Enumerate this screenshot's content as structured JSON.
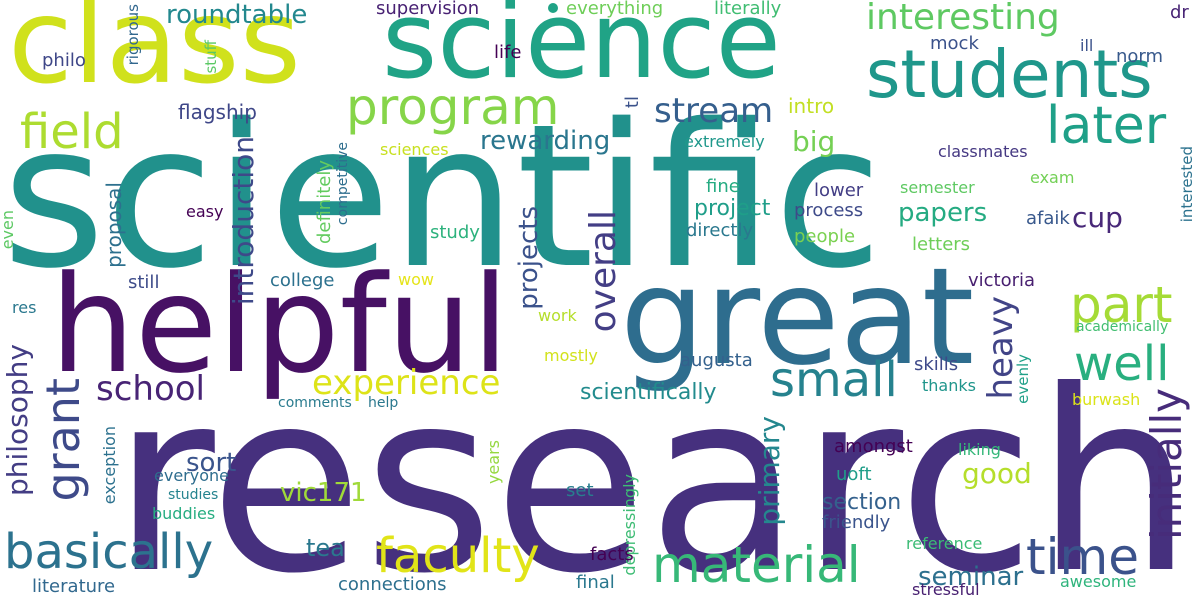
{
  "words": [
    {
      "text": "research",
      "color": "#46307e"
    },
    {
      "text": "scientific",
      "color": "#21918c"
    },
    {
      "text": "helpful",
      "color": "#471164"
    },
    {
      "text": "great",
      "color": "#2e6d8e"
    },
    {
      "text": "class",
      "color": "#d0e11c"
    },
    {
      "text": "science",
      "color": "#20a386"
    },
    {
      "text": "students",
      "color": "#1f978b"
    },
    {
      "text": "program",
      "color": "#86d549"
    },
    {
      "text": "field",
      "color": "#addc30"
    },
    {
      "text": "later",
      "color": "#1fa088"
    },
    {
      "text": "part",
      "color": "#a5db36"
    },
    {
      "text": "well",
      "color": "#29af7f"
    },
    {
      "text": "small",
      "color": "#26828e"
    },
    {
      "text": "time",
      "color": "#3b528b"
    },
    {
      "text": "material",
      "color": "#37b878"
    },
    {
      "text": "faculty",
      "color": "#e1e418"
    },
    {
      "text": "basically",
      "color": "#2c728e"
    },
    {
      "text": "grant",
      "color": "#3e4a89"
    },
    {
      "text": "initially",
      "color": "#472c7a"
    },
    {
      "text": "interesting",
      "color": "#5ec962"
    },
    {
      "text": "experience",
      "color": "#dde318"
    },
    {
      "text": "school",
      "color": "#482475"
    },
    {
      "text": "stream",
      "color": "#355f8d"
    },
    {
      "text": "overall",
      "color": "#433e85"
    },
    {
      "text": "heavy",
      "color": "#414487"
    },
    {
      "text": "roundtable",
      "color": "#23888e"
    },
    {
      "text": "papers",
      "color": "#25ab82"
    },
    {
      "text": "projects",
      "color": "#3b528b"
    },
    {
      "text": "introduction",
      "color": "#3e4989"
    },
    {
      "text": "rewarding",
      "color": "#2a768e"
    },
    {
      "text": "good",
      "color": "#b5de2b"
    },
    {
      "text": "seminar",
      "color": "#2d708e"
    },
    {
      "text": "philosophy",
      "color": "#433d84"
    },
    {
      "text": "cup",
      "color": "#482878"
    },
    {
      "text": "big",
      "color": "#75d054"
    },
    {
      "text": "project",
      "color": "#1f9e89"
    },
    {
      "text": "primary",
      "color": "#24878e"
    },
    {
      "text": "vic171",
      "color": "#a0da39"
    },
    {
      "text": "sort",
      "color": "#3a548c"
    },
    {
      "text": "tea",
      "color": "#2a788e"
    },
    {
      "text": "section",
      "color": "#34618d"
    },
    {
      "text": "scientifically",
      "color": "#228b8d"
    },
    {
      "text": "flagship",
      "color": "#3f4788"
    },
    {
      "text": "proposal",
      "color": "#2d708e"
    },
    {
      "text": "supervision",
      "color": "#482173"
    },
    {
      "text": "mock",
      "color": "#3b528b"
    },
    {
      "text": "intro",
      "color": "#c2df23"
    },
    {
      "text": "life",
      "color": "#440154"
    },
    {
      "text": "philo",
      "color": "#3f4788"
    },
    {
      "text": "rigorous",
      "color": "#31678e"
    },
    {
      "text": "stuff",
      "color": "#5ac864"
    },
    {
      "text": "everything",
      "color": "#6ece58"
    },
    {
      "text": "literally",
      "color": "#40bd72"
    },
    {
      "text": "norm",
      "color": "#38598c"
    },
    {
      "text": "dr",
      "color": "#482475"
    },
    {
      "text": "ill",
      "color": "#3b528b"
    },
    {
      "text": "tl",
      "color": "#3b528b"
    },
    {
      "text": "extremely",
      "color": "#1f988b"
    },
    {
      "text": "classmates",
      "color": "#453882"
    },
    {
      "text": "exam",
      "color": "#73d056"
    },
    {
      "text": "interested",
      "color": "#2c728e"
    },
    {
      "text": "fine",
      "color": "#25ab82"
    },
    {
      "text": "lower",
      "color": "#433e85"
    },
    {
      "text": "semester",
      "color": "#5ec962"
    },
    {
      "text": "process",
      "color": "#3e4a89"
    },
    {
      "text": "afaik",
      "color": "#38588c"
    },
    {
      "text": "directly",
      "color": "#2a788e"
    },
    {
      "text": "people",
      "color": "#7ad151"
    },
    {
      "text": "letters",
      "color": "#6ece58"
    },
    {
      "text": "easy",
      "color": "#440154"
    },
    {
      "text": "definitely",
      "color": "#63cb5f"
    },
    {
      "text": "competitive",
      "color": "#2e6e8e"
    },
    {
      "text": "study",
      "color": "#2db27d"
    },
    {
      "text": "sciences",
      "color": "#c8e020"
    },
    {
      "text": "even",
      "color": "#5cc863"
    },
    {
      "text": "res",
      "color": "#2a788e"
    },
    {
      "text": "still",
      "color": "#3e4c8a"
    },
    {
      "text": "college",
      "color": "#2c718e"
    },
    {
      "text": "wow",
      "color": "#e5e419"
    },
    {
      "text": "work",
      "color": "#b5de2b"
    },
    {
      "text": "victoria",
      "color": "#481f70"
    },
    {
      "text": "academically",
      "color": "#42be71"
    },
    {
      "text": "mostly",
      "color": "#d2e21b"
    },
    {
      "text": "augusta",
      "color": "#34618d"
    },
    {
      "text": "skills",
      "color": "#3e4989"
    },
    {
      "text": "evenly",
      "color": "#1fa088"
    },
    {
      "text": "thanks",
      "color": "#1f958b"
    },
    {
      "text": "burwash",
      "color": "#dae319"
    },
    {
      "text": "comments",
      "color": "#297b8e"
    },
    {
      "text": "help",
      "color": "#2a788e"
    },
    {
      "text": "amongst",
      "color": "#440154"
    },
    {
      "text": "liking",
      "color": "#35b779"
    },
    {
      "text": "uoft",
      "color": "#1f9e89"
    },
    {
      "text": "everyone",
      "color": "#2e6d8e"
    },
    {
      "text": "exception",
      "color": "#2c718e"
    },
    {
      "text": "studies",
      "color": "#25838e"
    },
    {
      "text": "buddies",
      "color": "#26ad81"
    },
    {
      "text": "years",
      "color": "#95d840"
    },
    {
      "text": "set",
      "color": "#287d8e"
    },
    {
      "text": "depressingly",
      "color": "#3dbc74"
    },
    {
      "text": "friendly",
      "color": "#3a548c"
    },
    {
      "text": "reference",
      "color": "#3bbb75"
    },
    {
      "text": "awesome",
      "color": "#2fb47c"
    },
    {
      "text": "literature",
      "color": "#31688e"
    },
    {
      "text": "connections",
      "color": "#2d708e"
    },
    {
      "text": "facts",
      "color": "#440154"
    },
    {
      "text": "final",
      "color": "#2a788e"
    },
    {
      "text": "stressful",
      "color": "#482071"
    }
  ],
  "dot_color": "#20a386"
}
